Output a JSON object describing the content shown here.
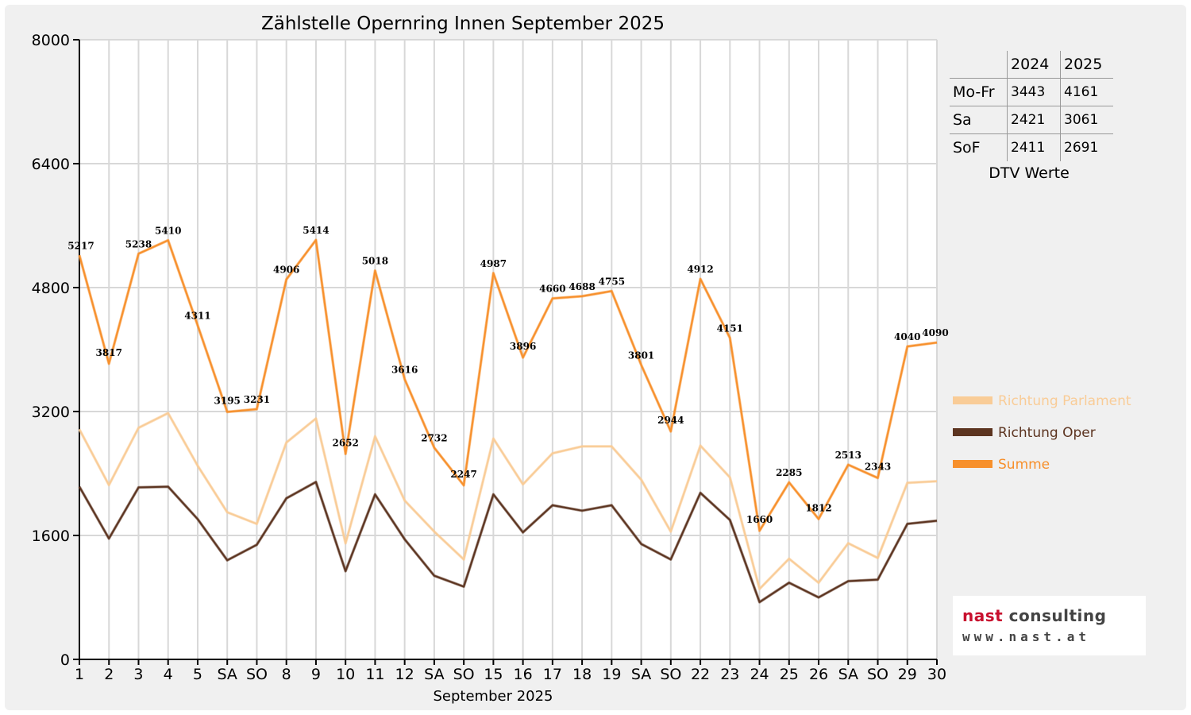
{
  "colors": {
    "background": "#f0f0f0",
    "plot_background": "#ffffff",
    "grid": "#d8d8d8",
    "richtung_parlament": "#f9cc97",
    "richtung_oper": "#5c3420",
    "summe": "#f7902c",
    "sunday_label": "#ff0000"
  },
  "chart_data": {
    "type": "line",
    "title": "Zählstelle Opernring Innen September 2025",
    "xlabel": "September 2025",
    "ylabel": "",
    "ylim": [
      0,
      8000
    ],
    "yticks": [
      0,
      1600,
      3200,
      4800,
      6400,
      8000
    ],
    "grid": true,
    "legend_position": "right",
    "categories": [
      "1",
      "2",
      "3",
      "4",
      "5",
      "SA",
      "SO",
      "8",
      "9",
      "10",
      "11",
      "12",
      "SA",
      "SO",
      "15",
      "16",
      "17",
      "18",
      "19",
      "SA",
      "SO",
      "22",
      "23",
      "24",
      "25",
      "26",
      "SA",
      "SO",
      "29",
      "30"
    ],
    "sunday_indices": [
      6,
      13,
      20,
      27
    ],
    "series": [
      {
        "name": "Richtung Parlament",
        "color": "#f9cc97",
        "values": [
          2970,
          2250,
          2990,
          3180,
          2500,
          1900,
          1750,
          2800,
          3110,
          1500,
          2880,
          2050,
          1650,
          1290,
          2850,
          2260,
          2660,
          2750,
          2750,
          2320,
          1650,
          2760,
          2350,
          910,
          1300,
          990,
          1500,
          1310,
          2280,
          2300
        ]
      },
      {
        "name": "Richtung Oper",
        "color": "#5c3420",
        "values": [
          2230,
          1560,
          2220,
          2230,
          1810,
          1280,
          1480,
          2080,
          2290,
          1140,
          2130,
          1550,
          1080,
          940,
          2130,
          1640,
          1990,
          1920,
          1990,
          1490,
          1290,
          2150,
          1800,
          740,
          990,
          800,
          1010,
          1030,
          1750,
          1790
        ]
      },
      {
        "name": "Summe",
        "color": "#f7902c",
        "values": [
          5217,
          3817,
          5238,
          5410,
          4311,
          3195,
          3231,
          4906,
          5414,
          2652,
          5018,
          3616,
          2732,
          2247,
          4987,
          3896,
          4660,
          4688,
          4755,
          3801,
          2944,
          4912,
          4151,
          1660,
          2285,
          1812,
          2513,
          2343,
          4040,
          4090
        ]
      }
    ],
    "data_labels_series": "Summe"
  },
  "dtv_table": {
    "headers": [
      "",
      "2024",
      "2025"
    ],
    "rows": [
      {
        "label": "Mo-Fr",
        "v2024": "3443",
        "v2025": "4161"
      },
      {
        "label": "Sa",
        "v2024": "2421",
        "v2025": "3061"
      },
      {
        "label": "SoF",
        "v2024": "2411",
        "v2025": "2691"
      }
    ],
    "caption": "DTV Werte"
  },
  "logo": {
    "line1_a": "nast",
    "line1_b": " consulting",
    "line2": "www.nast.at"
  }
}
